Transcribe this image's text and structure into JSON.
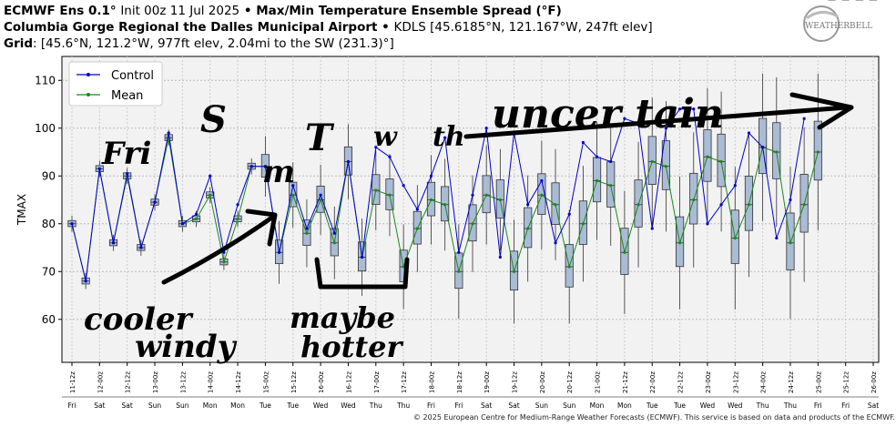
{
  "header": {
    "model": "ECMWF Ens 0.1",
    "init": "Init 00z 11 Jul 2025",
    "title": "Max/Min Temperature Ensemble Spread (°F)",
    "station": "Columbia Gorge Regional the Dalles Municipal Airport",
    "station_code": "KDLS [45.6185°N, 121.167°W, 247ft elev]",
    "grid_label": "Grid",
    "grid": ": [45.6°N, 121.2°W, 977ft elev, 2.04mi to the SW (231.3)°]"
  },
  "logo_text": "WEATHERBELL",
  "copyright": "© 2025 European Centre for Medium-Range Weather Forecasts (ECMWF). This service is based on data and products of the ECMWF.",
  "colors": {
    "control": "#0000cc",
    "mean": "#1a8a1a",
    "box": "#aabbd5",
    "plot_bg": "#f2f2f2",
    "annotation": "#000000"
  },
  "chart_data": {
    "type": "box",
    "ylabel": "TMAX",
    "ylim": [
      51,
      115
    ],
    "yticks": [
      60,
      70,
      80,
      90,
      100,
      110
    ],
    "grid": true,
    "legend": {
      "position": "top-left",
      "entries": [
        "Control",
        "Mean"
      ]
    },
    "x": [
      "11-12z",
      "12-00z",
      "12-12z",
      "13-00z",
      "13-12z",
      "14-00z",
      "14-12z",
      "15-00z",
      "15-12z",
      "16-00z",
      "16-12z",
      "17-00z",
      "17-12z",
      "18-00z",
      "18-12z",
      "19-00z",
      "19-12z",
      "20-00z",
      "20-12z",
      "21-00z",
      "21-12z",
      "22-00z",
      "22-12z",
      "23-00z",
      "23-12z",
      "24-00z",
      "24-12z",
      "25-00z",
      "25-12z",
      "26-00z"
    ],
    "days": [
      "Fri",
      "Sat",
      "Sat",
      "Sun",
      "Sun",
      "Mon",
      "Mon",
      "Tue",
      "Tue",
      "Wed",
      "Wed",
      "Thu",
      "Thu",
      "Fri",
      "Fri",
      "Sat",
      "Sat",
      "Sun",
      "Sun",
      "Mon",
      "Mon",
      "Tue",
      "Tue",
      "Wed",
      "Wed",
      "Thu",
      "Thu",
      "Fri",
      "Fri",
      "Sat"
    ],
    "series": [
      {
        "name": "Control",
        "values": [
          80,
          68,
          91.5,
          76,
          90.5,
          75,
          84.5,
          99,
          80,
          82,
          90,
          74,
          84,
          92,
          92,
          74,
          88,
          79,
          86,
          78,
          93,
          73,
          96,
          94,
          88,
          83,
          90,
          98,
          74,
          86,
          100,
          73,
          99,
          84,
          89,
          76,
          82,
          97,
          94,
          93,
          102,
          101,
          79,
          100,
          104,
          104,
          80,
          84,
          88,
          99,
          96,
          77,
          85,
          102
        ]
      },
      {
        "name": "Mean",
        "values": [
          80,
          68,
          91.5,
          76,
          90,
          75,
          84.5,
          98,
          80,
          81,
          86,
          72,
          81,
          92,
          92,
          74,
          86,
          78,
          85,
          76,
          93,
          73,
          87,
          86,
          71,
          79,
          85,
          84,
          70,
          80,
          86,
          85,
          70,
          79,
          86,
          84,
          71,
          80,
          89,
          88,
          74,
          84,
          93,
          92,
          76,
          85,
          94,
          93,
          77,
          84,
          96,
          95,
          76,
          84,
          95
        ]
      }
    ],
    "steps": 59,
    "annotations": [
      "Fri",
      "S",
      "m",
      "T",
      "w",
      "th",
      "uncer tain",
      "cooler & windy",
      "maybe hotter"
    ]
  }
}
